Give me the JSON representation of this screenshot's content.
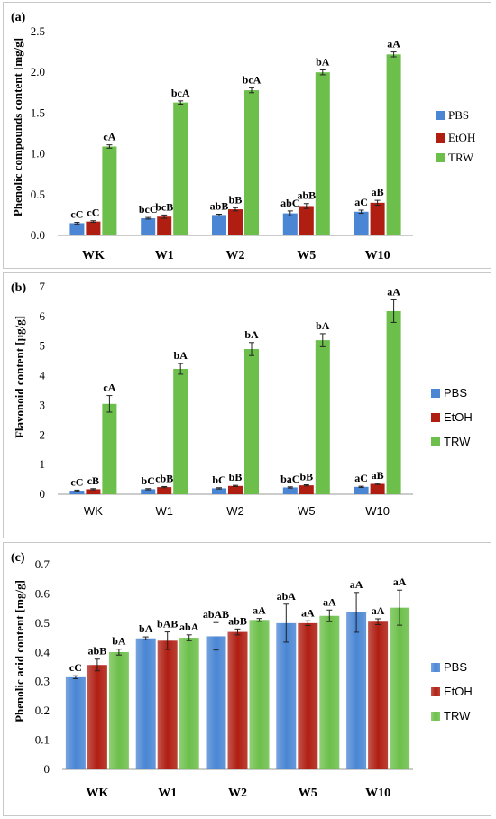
{
  "colors": {
    "PBS": "#4a86d4",
    "EtOH": "#b01e12",
    "TRW": "#6cbf4a"
  },
  "chart_data": [
    {
      "type": "bar",
      "panel_label": "(a)",
      "ylabel": "Phenolic compounds content [mg/g]",
      "ylim": [
        0,
        2.5
      ],
      "yticks": [
        "0.0",
        "0.5",
        "1.0",
        "1.5",
        "2.0",
        "2.5"
      ],
      "categories": [
        "WK",
        "W1",
        "W2",
        "W5",
        "W10"
      ],
      "grid": false,
      "legend": "right",
      "series": [
        {
          "name": "PBS",
          "values": [
            0.15,
            0.21,
            0.25,
            0.27,
            0.29
          ],
          "errors": [
            0.01,
            0.01,
            0.01,
            0.03,
            0.02
          ],
          "labels": [
            "cC",
            "bcC",
            "abB",
            "abC",
            "aC"
          ]
        },
        {
          "name": "EtOH",
          "values": [
            0.17,
            0.23,
            0.32,
            0.36,
            0.4
          ],
          "errors": [
            0.01,
            0.02,
            0.02,
            0.03,
            0.03
          ],
          "labels": [
            "cC",
            "bcB",
            "bB",
            "abB",
            "aB"
          ]
        },
        {
          "name": "TRW",
          "values": [
            1.09,
            1.63,
            1.78,
            2.0,
            2.22
          ],
          "errors": [
            0.02,
            0.02,
            0.03,
            0.03,
            0.03
          ],
          "labels": [
            "cA",
            "bcA",
            "bcA",
            "bA",
            "aA"
          ]
        }
      ]
    },
    {
      "type": "bar",
      "panel_label": "(b)",
      "ylabel": "Flavonoid content [µg/g]",
      "ylim": [
        0,
        7
      ],
      "yticks": [
        "0",
        "1",
        "2",
        "3",
        "4",
        "5",
        "6",
        "7"
      ],
      "categories": [
        "WK",
        "W1",
        "W2",
        "W5",
        "W10"
      ],
      "grid": false,
      "legend": "right",
      "series": [
        {
          "name": "PBS",
          "values": [
            0.12,
            0.17,
            0.2,
            0.23,
            0.25
          ],
          "errors": [
            0.02,
            0.02,
            0.02,
            0.02,
            0.02
          ],
          "labels": [
            "cC",
            "bC",
            "bC",
            "baC",
            "aC"
          ]
        },
        {
          "name": "EtOH",
          "values": [
            0.17,
            0.24,
            0.28,
            0.3,
            0.35
          ],
          "errors": [
            0.02,
            0.02,
            0.02,
            0.02,
            0.02
          ],
          "labels": [
            "cB",
            "cbB",
            "bB",
            "bB",
            "aB"
          ]
        },
        {
          "name": "TRW",
          "values": [
            3.05,
            4.23,
            4.9,
            5.2,
            6.18
          ],
          "errors": [
            0.28,
            0.18,
            0.22,
            0.22,
            0.38
          ],
          "labels": [
            "cA",
            "bA",
            "bA",
            "bA",
            "aA"
          ]
        }
      ]
    },
    {
      "type": "bar",
      "panel_label": "(c)",
      "ylabel": "Phenolic acid content [mg/g]",
      "ylim": [
        0,
        0.7
      ],
      "yticks": [
        "0",
        "0.1",
        "0.2",
        "0.3",
        "0.4",
        "0.5",
        "0.6",
        "0.7"
      ],
      "categories": [
        "WK",
        "W1",
        "W2",
        "W5",
        "W10"
      ],
      "grid": false,
      "legend": "right",
      "series": [
        {
          "name": "PBS",
          "values": [
            0.315,
            0.448,
            0.455,
            0.5,
            0.537
          ],
          "errors": [
            0.005,
            0.005,
            0.047,
            0.065,
            0.068
          ],
          "labels": [
            "cC",
            "bA",
            "abAB",
            "abA",
            "aA"
          ]
        },
        {
          "name": "EtOH",
          "values": [
            0.357,
            0.44,
            0.47,
            0.5,
            0.505
          ],
          "errors": [
            0.02,
            0.03,
            0.01,
            0.008,
            0.01
          ],
          "labels": [
            "abB",
            "bAB",
            "abB",
            "aA",
            "aA"
          ]
        },
        {
          "name": "TRW",
          "values": [
            0.401,
            0.45,
            0.511,
            0.525,
            0.553
          ],
          "errors": [
            0.01,
            0.01,
            0.005,
            0.02,
            0.06
          ],
          "labels": [
            "bA",
            "abA",
            "aA",
            "aA",
            "aA"
          ]
        }
      ]
    }
  ]
}
